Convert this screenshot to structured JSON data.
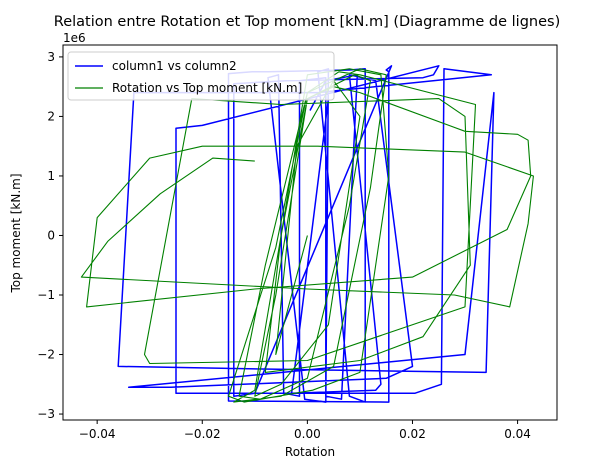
{
  "chart_data": {
    "type": "line",
    "title": "Relation entre Rotation et Top moment [kN.m] (Diagramme de lignes)",
    "xlabel": "Rotation",
    "ylabel": "Top moment [kN.m]",
    "y_offset_label": "1e6",
    "xlim": [
      -0.0465,
      0.0475
    ],
    "ylim": [
      -3100000,
      3200000
    ],
    "xticks": [
      -0.04,
      -0.02,
      0.0,
      0.02,
      0.04
    ],
    "xtick_labels": [
      "−0.04",
      "−0.02",
      "0.00",
      "0.02",
      "0.04"
    ],
    "yticks": [
      -3000000,
      -2000000,
      -1000000,
      0,
      1000000,
      2000000,
      3000000
    ],
    "ytick_labels": [
      "−3",
      "−2",
      "−1",
      "0",
      "1",
      "2",
      "3"
    ],
    "grid": false,
    "legend_position": "top-left",
    "series": [
      {
        "name": "column1 vs column2",
        "color": "#0000ff",
        "x": [
          0.0005,
          0.0035,
          0.0095,
          0.0065,
          0.0035,
          0.0035,
          -0.0015,
          -0.0015,
          -0.0045,
          -0.0055,
          -0.0075,
          -0.0005,
          0.0035,
          0.004,
          0.002,
          0.008,
          0.011,
          0.011,
          0.008,
          -0.0075,
          -0.0105,
          -0.015,
          -0.015,
          0.0155,
          0.0155,
          0.015,
          0.016,
          -0.01,
          -0.014,
          -0.014,
          -0.004,
          0.022,
          0.024,
          0.025,
          -0.02,
          -0.025,
          -0.025,
          0.0205,
          0.0255,
          0.026,
          0.035,
          0.002,
          -0.033,
          -0.036,
          -0.004,
          0.034,
          0.0355,
          0.03,
          -0.034,
          -0.026,
          0.015,
          0.02,
          0.013,
          0.008,
          0.014,
          0.013,
          -0.003,
          0.004
        ],
        "y": [
          2100000,
          2600000,
          2700000,
          -2750000,
          -2700000,
          2650000,
          2600000,
          -2700000,
          -2650000,
          2700000,
          2650000,
          -2750000,
          -2800000,
          2800000,
          2750000,
          -2700000,
          -2800000,
          2800000,
          2780000,
          2750000,
          2750000,
          2720000,
          -2780000,
          -2800000,
          2750000,
          2780000,
          2850000,
          -2650000,
          -2700000,
          2550000,
          2600000,
          2650000,
          2700000,
          2850000,
          1850000,
          1800000,
          -2650000,
          -2650000,
          -2500000,
          2800000,
          2700000,
          2400000,
          2400000,
          -2200000,
          -2250000,
          -2300000,
          2400000,
          -2000000,
          -2550000,
          -2550000,
          -2400000,
          -2200000,
          2600000,
          2700000,
          -2500000,
          -2600000,
          -2650000,
          2300000
        ]
      },
      {
        "name": "Rotation vs Top moment [kN.m]",
        "color": "#008000",
        "x": [
          -0.01,
          -0.018,
          -0.028,
          -0.038,
          -0.043,
          0.0,
          0.028,
          0.0385,
          0.042,
          0.043,
          0.03,
          0.002,
          -0.02,
          -0.03,
          -0.04,
          -0.042,
          -0.01,
          0.02,
          0.038,
          0.0425,
          0.042,
          0.04,
          0.03,
          0.01,
          0.005,
          0.0,
          -0.005,
          -0.008,
          0.01,
          0.022,
          0.031,
          0.03,
          0.025,
          -0.005,
          -0.022,
          -0.031,
          -0.03,
          0.0,
          0.03,
          0.032,
          0.01,
          0.006,
          0.0,
          -0.006,
          -0.015,
          -0.012,
          0.001,
          0.01,
          0.0155,
          0.014,
          0.008,
          0.0,
          -0.005,
          -0.01,
          -0.014,
          -0.005,
          0.005,
          0.012,
          0.015,
          0.01,
          0.0,
          -0.008,
          -0.013,
          -0.009,
          0.0,
          0.008,
          0.012,
          0.009,
          0.0,
          -0.006,
          -0.01,
          -0.005,
          0.004,
          0.01,
          0.005,
          -0.002,
          -0.006,
          0.0
        ],
        "y": [
          1250000,
          1300000,
          700000,
          -100000,
          -700000,
          -900000,
          -1000000,
          -1200000,
          200000,
          1000000,
          1400000,
          1500000,
          1500000,
          1300000,
          300000,
          -1200000,
          -900000,
          -700000,
          100000,
          1000000,
          1600000,
          1700000,
          1750000,
          2400000,
          2500000,
          2300000,
          0,
          -2300000,
          -2100000,
          -1700000,
          -500000,
          2000000,
          2300000,
          2200000,
          2300000,
          -2000000,
          -2150000,
          -2100000,
          -1200000,
          2200000,
          2700000,
          2750000,
          2400000,
          -200000,
          -2700000,
          -2800000,
          -2600000,
          -2300000,
          1000000,
          2700000,
          2800000,
          2700000,
          0,
          -2600000,
          -2800000,
          -2700000,
          -2200000,
          800000,
          2700000,
          2800000,
          2400000,
          -500000,
          -2700000,
          -2750000,
          -2400000,
          500000,
          2600000,
          2700000,
          2300000,
          -1000000,
          -2700000,
          -2500000,
          -1500000,
          2000000,
          2600000,
          1500000,
          -2000000,
          0
        ]
      }
    ]
  }
}
